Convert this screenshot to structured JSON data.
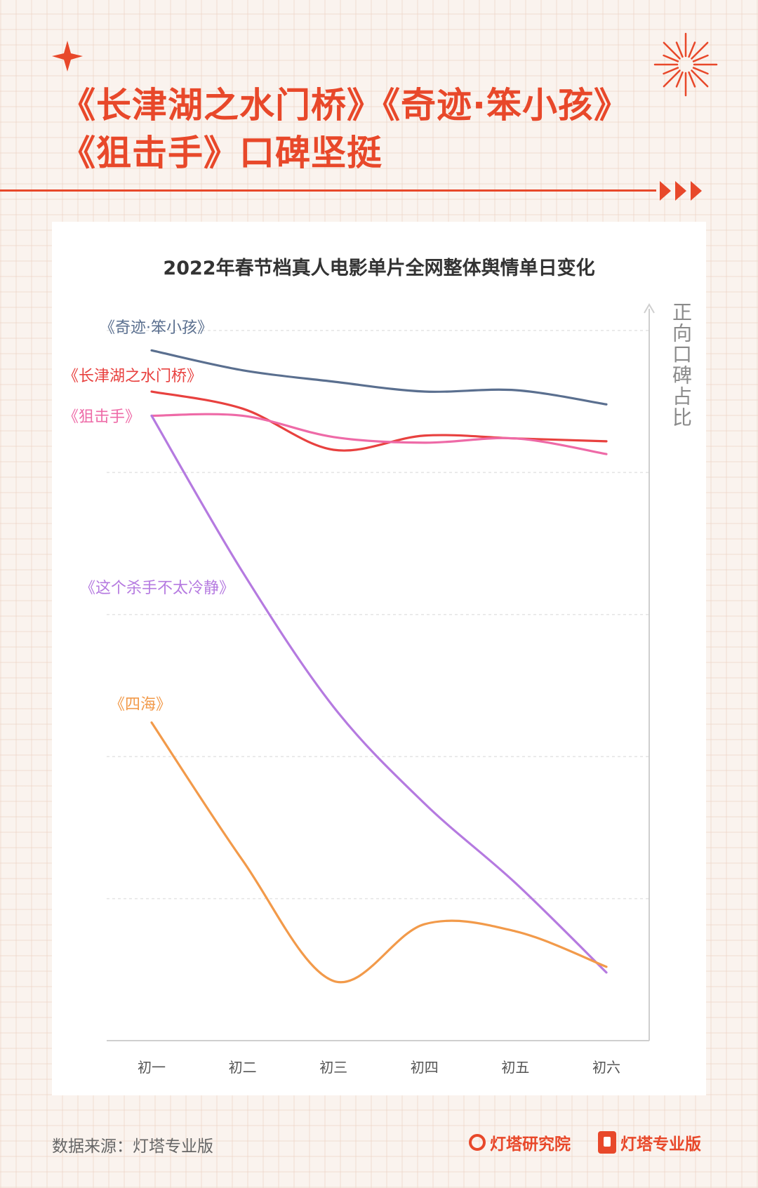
{
  "header": {
    "line1": "《长津湖之水门桥》《奇迹·笨小孩》",
    "line2": "《狙击手》口碑坚挺"
  },
  "colors": {
    "accent": "#e8482a",
    "qiji": "#5a6f8f",
    "changjinhu": "#e8413f",
    "jujishou": "#ee6aa7",
    "shashou": "#b57ae0",
    "sihai": "#f29a4a"
  },
  "icons": [
    "sparkle-icon",
    "firework-icon",
    "triple-arrow-icon",
    "y-axis-arrow-icon"
  ],
  "chart_data": {
    "type": "line",
    "title": "2022年春节档真人电影单片全网整体舆情单日变化",
    "ylabel": "正向口碑占比",
    "categories": [
      "初一",
      "初二",
      "初三",
      "初四",
      "初五",
      "初六"
    ],
    "ylim": [
      0,
      5
    ],
    "grid": true,
    "series": [
      {
        "name": "《奇迹·笨小孩》",
        "color": "#5a6f8f",
        "values": [
          4.86,
          4.72,
          4.64,
          4.57,
          4.58,
          4.48
        ]
      },
      {
        "name": "《长津湖之水门桥》",
        "color": "#e8413f",
        "values": [
          4.57,
          4.45,
          4.16,
          4.26,
          4.24,
          4.22
        ]
      },
      {
        "name": "《狙击手》",
        "color": "#ee6aa7",
        "values": [
          4.4,
          4.4,
          4.25,
          4.21,
          4.24,
          4.13
        ]
      },
      {
        "name": "《这个杀手不太冷静》",
        "color": "#b57ae0",
        "values": [
          4.4,
          3.3,
          2.35,
          1.67,
          1.11,
          0.48
        ]
      },
      {
        "name": "《四海》",
        "color": "#f29a4a",
        "values": [
          2.24,
          1.27,
          0.42,
          0.82,
          0.77,
          0.52
        ]
      }
    ]
  },
  "footer": {
    "source": "数据来源：灯塔专业版",
    "brand1": "灯塔研究院",
    "brand2": "灯塔专业版"
  }
}
